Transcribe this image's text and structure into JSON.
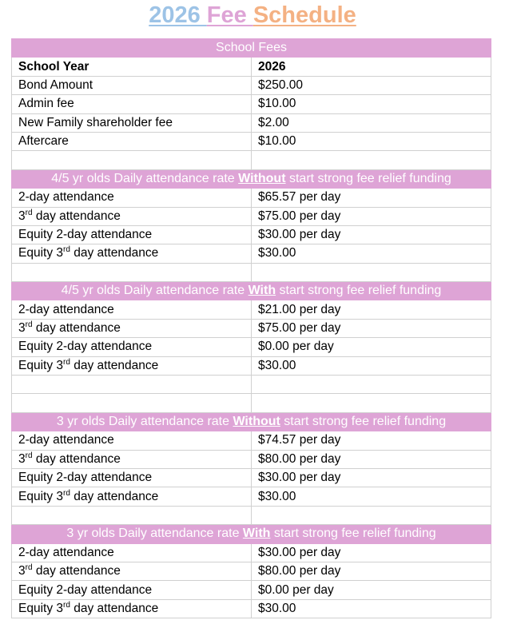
{
  "title": {
    "parts": [
      {
        "text": "2026 ",
        "color": "#9dc3e6"
      },
      {
        "text": "Fee ",
        "color": "#dea4d6"
      },
      {
        "text": "Schedule",
        "color": "#f4b183"
      }
    ]
  },
  "colors": {
    "header_bg": "#dea4d6",
    "header_text": "#ffffff"
  },
  "school_fees": {
    "header": "School Fees",
    "col_headers": [
      "School Year",
      "2026"
    ],
    "rows": [
      [
        "Bond Amount",
        "$250.00"
      ],
      [
        "Admin fee",
        "$10.00"
      ],
      [
        "New Family shareholder fee",
        "$2.00"
      ],
      [
        "Aftercare",
        "$10.00"
      ]
    ]
  },
  "sections": [
    {
      "header": {
        "pre": "4/5 yr olds Daily attendance rate ",
        "bold": "Without",
        "post": " start strong fee relief funding"
      },
      "rows": [
        {
          "pre": "2-day attendance",
          "sup": "",
          "post": "",
          "value": "$65.57 per day"
        },
        {
          "pre": "3",
          "sup": "rd",
          "post": " day attendance",
          "value": "$75.00 per day"
        },
        {
          "pre": "Equity 2-day attendance",
          "sup": "",
          "post": "",
          "value": "$30.00 per day"
        },
        {
          "pre": "Equity 3",
          "sup": "rd",
          "post": " day attendance",
          "value": "$30.00"
        }
      ],
      "blanks_after": 1
    },
    {
      "header": {
        "pre": "4/5 yr olds Daily attendance rate ",
        "bold": "With",
        "post": " start strong fee relief funding"
      },
      "rows": [
        {
          "pre": "2-day attendance",
          "sup": "",
          "post": "",
          "value": "$21.00 per day"
        },
        {
          "pre": "3",
          "sup": "rd",
          "post": " day attendance",
          "value": "$75.00 per day"
        },
        {
          "pre": "Equity 2-day attendance",
          "sup": "",
          "post": "",
          "value": "$0.00 per day"
        },
        {
          "pre": "Equity 3",
          "sup": "rd",
          "post": " day attendance",
          "value": "$30.00"
        }
      ],
      "blanks_after": 2
    },
    {
      "header": {
        "pre": "3 yr olds Daily attendance rate ",
        "bold": "Without",
        "post": " start strong fee relief funding"
      },
      "rows": [
        {
          "pre": "2-day attendance",
          "sup": "",
          "post": "",
          "value": "$74.57 per day"
        },
        {
          "pre": "3",
          "sup": "rd",
          "post": " day attendance",
          "value": "$80.00 per day"
        },
        {
          "pre": "Equity 2-day attendance",
          "sup": "",
          "post": "",
          "value": "$30.00 per day"
        },
        {
          "pre": "Equity 3",
          "sup": "rd",
          "post": " day attendance",
          "value": "$30.00"
        }
      ],
      "blanks_after": 1
    },
    {
      "header": {
        "pre": "3 yr olds Daily attendance rate ",
        "bold": "With",
        "post": " start strong fee relief funding"
      },
      "rows": [
        {
          "pre": "2-day attendance",
          "sup": "",
          "post": "",
          "value": "$30.00 per day"
        },
        {
          "pre": "3",
          "sup": "rd",
          "post": " day attendance",
          "value": "$80.00 per day"
        },
        {
          "pre": "Equity 2-day attendance",
          "sup": "",
          "post": "",
          "value": "$0.00 per day"
        },
        {
          "pre": "Equity 3",
          "sup": "rd",
          "post": " day attendance",
          "value": "$30.00"
        }
      ],
      "blanks_after": 0
    }
  ]
}
